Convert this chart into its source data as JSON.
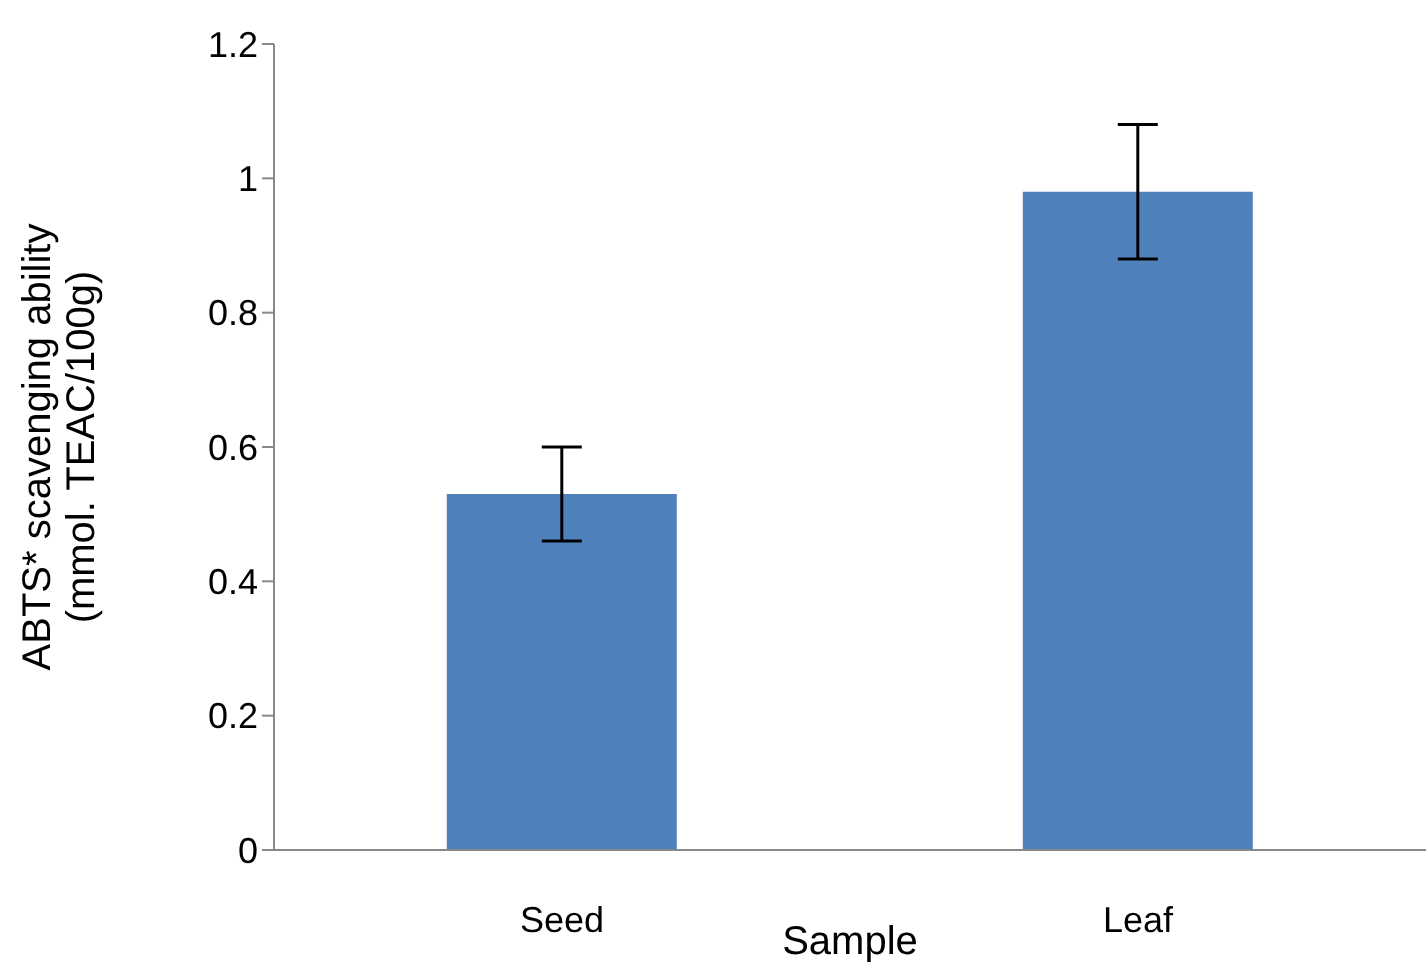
{
  "chart_data": {
    "type": "bar",
    "xlabel": "Sample",
    "ylabel": "ABTS* scavenging ability\n(mmol. TEAC/100g)",
    "categories": [
      "Seed",
      "Leaf"
    ],
    "values": [
      0.53,
      0.98
    ],
    "errors": [
      0.07,
      0.1
    ],
    "color": "#4f81bd",
    "ylim": [
      0,
      1.2
    ],
    "yticks": [
      0,
      0.2,
      0.4,
      0.6,
      0.8,
      1,
      1.2
    ],
    "grid": false,
    "legend": false
  }
}
